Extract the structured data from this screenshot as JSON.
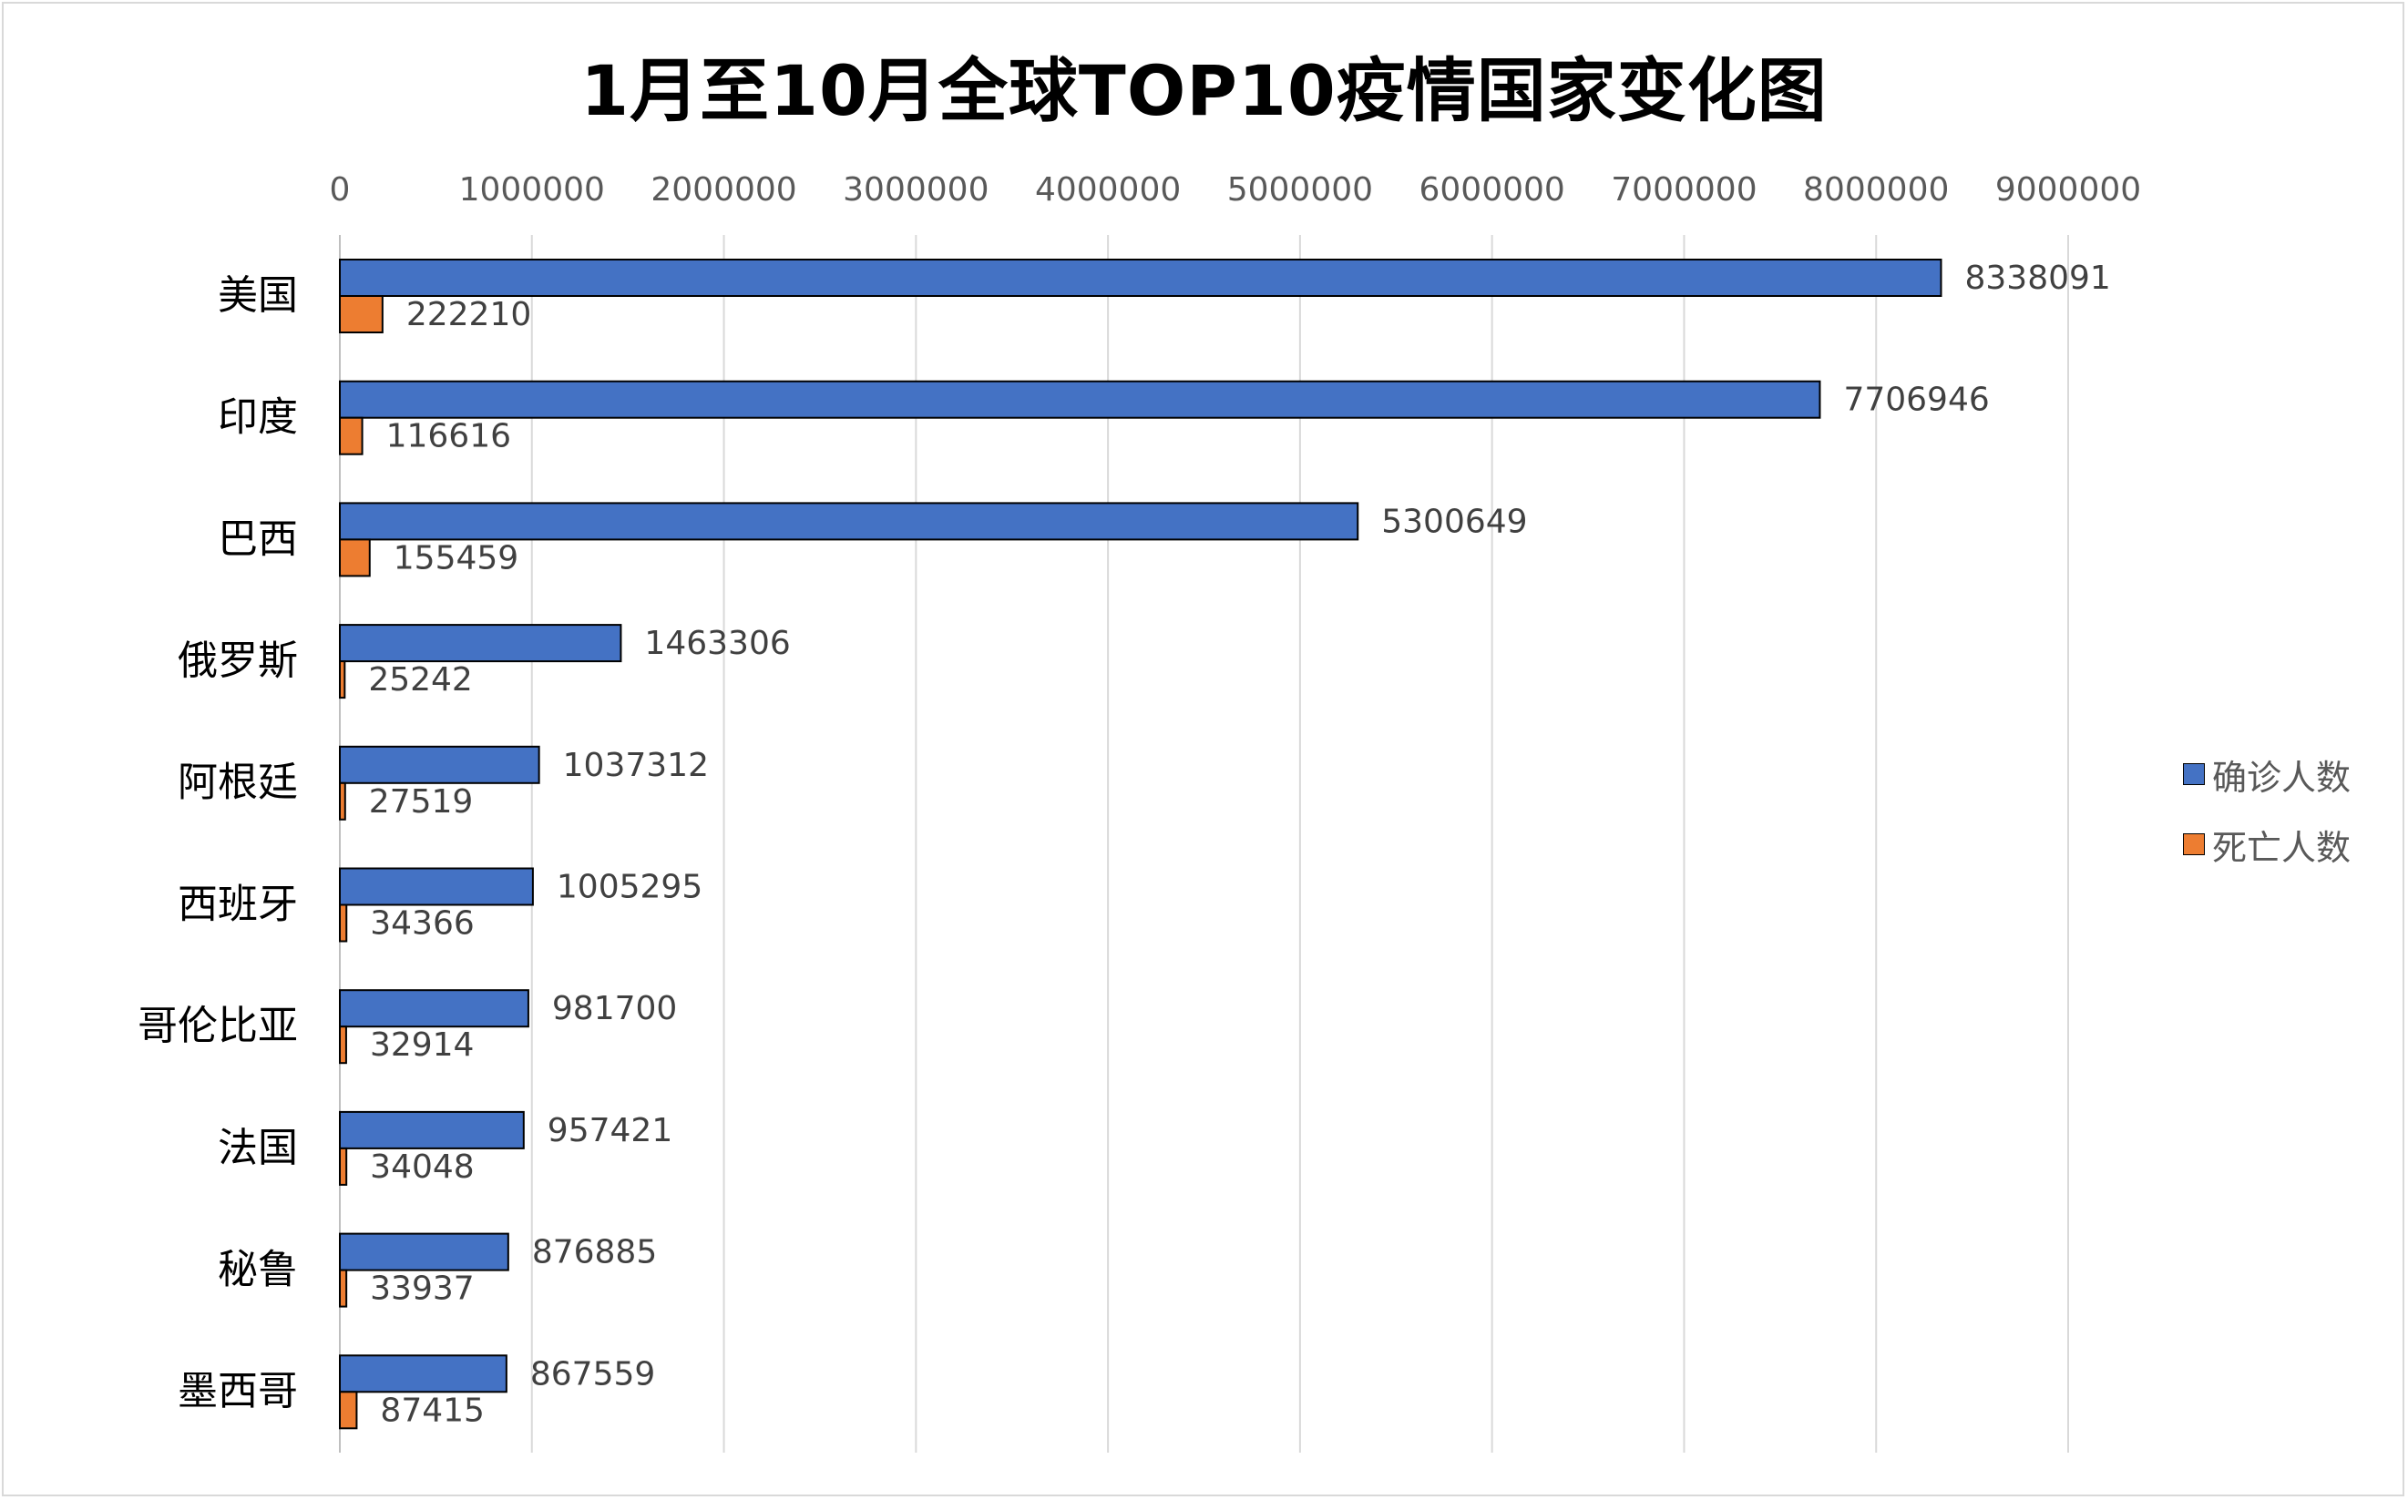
{
  "chart_data": {
    "type": "bar",
    "orientation": "horizontal",
    "title": "1月至10月全球TOP10疫情国家变化图",
    "categories": [
      "美国",
      "印度",
      "巴西",
      "俄罗斯",
      "阿根廷",
      "西班牙",
      "哥伦比亚",
      "法国",
      "秘鲁",
      "墨西哥"
    ],
    "series": [
      {
        "name": "确诊人数",
        "color": "#4472C4",
        "values": [
          8338091,
          7706946,
          5300649,
          1463306,
          1037312,
          1005295,
          981700,
          957421,
          876885,
          867559
        ]
      },
      {
        "name": "死亡人数",
        "color": "#ED7D31",
        "values": [
          222210,
          116616,
          155459,
          25242,
          27519,
          34366,
          32914,
          34048,
          33937,
          87415
        ]
      }
    ],
    "x_ticks": [
      "0",
      "1000000",
      "2000000",
      "3000000",
      "4000000",
      "5000000",
      "6000000",
      "7000000",
      "8000000",
      "9000000"
    ],
    "xlim": [
      0,
      9000000
    ],
    "x_axis_position": "top",
    "grid": true,
    "data_labels": true,
    "legend_position": "right"
  }
}
